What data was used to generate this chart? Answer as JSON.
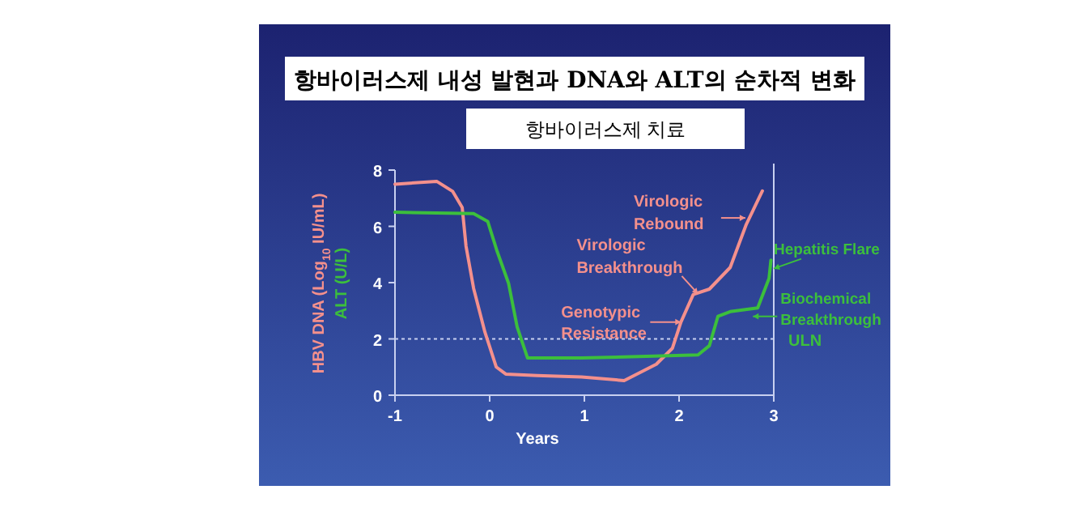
{
  "chart_data": {
    "type": "line",
    "title": "항바이러스제  내성 발현과  DNA와  ALT의 순차적 변화",
    "subtitle": "항바이러스제 치료",
    "xlabel": "Years",
    "xlim": [
      -1,
      3
    ],
    "ylim": [
      0,
      8
    ],
    "xticks": [
      -1,
      0,
      1,
      2,
      3
    ],
    "yticks": [
      0,
      2,
      4,
      6,
      8
    ],
    "grid": false,
    "marker": "none",
    "line_style": "solid",
    "series": [
      {
        "name": "HBV DNA (Log$_{10}$ IU/mL)",
        "color": "#f4908c",
        "x": [
          -1,
          -0.56,
          -0.39,
          -0.29,
          -0.25,
          -0.17,
          -0.05,
          0.07,
          0.17,
          0.5,
          0.97,
          1.42,
          1.76,
          1.93,
          2.02,
          2.15,
          2.32,
          2.54,
          2.71,
          2.88
        ],
        "values": [
          7.5,
          7.6,
          7.24,
          6.67,
          5.3,
          3.8,
          2.24,
          1.0,
          0.75,
          0.7,
          0.65,
          0.52,
          1.1,
          1.67,
          2.6,
          3.58,
          3.77,
          4.54,
          6.07,
          7.26
        ]
      },
      {
        "name": "ALT (U/L)",
        "color": "#3cbf3c",
        "x": [
          -1,
          -0.17,
          -0.02,
          0.08,
          0.2,
          0.29,
          0.4,
          0.97,
          2.2,
          2.32,
          2.41,
          2.54,
          2.83,
          2.95,
          2.97
        ],
        "values": [
          6.5,
          6.45,
          6.17,
          5.1,
          3.97,
          2.43,
          1.32,
          1.32,
          1.43,
          1.76,
          2.8,
          2.97,
          3.1,
          4.15,
          4.8
        ]
      }
    ],
    "ref_lines": [
      {
        "axis": "y",
        "value": 2,
        "label": "ULN",
        "color": "#c8d0f0",
        "line_style": "dotted"
      },
      {
        "axis": "x",
        "value": 3,
        "color": "#c8d0f0",
        "line_style": "solid"
      }
    ],
    "annotations": [
      {
        "text": "Virologic Rebound",
        "x": 2.7,
        "y": 6.3
      },
      {
        "text": "Virologic Breakthrough",
        "x": 2.2,
        "y": 3.6
      },
      {
        "text": "Genotypic Resistance",
        "x": 2.02,
        "y": 2.6
      },
      {
        "text": "Hepatitis Flare",
        "x": 3.0,
        "y": 4.5
      },
      {
        "text": "Biochemical Breakthrough",
        "x": 2.78,
        "y": 2.8
      }
    ]
  }
}
